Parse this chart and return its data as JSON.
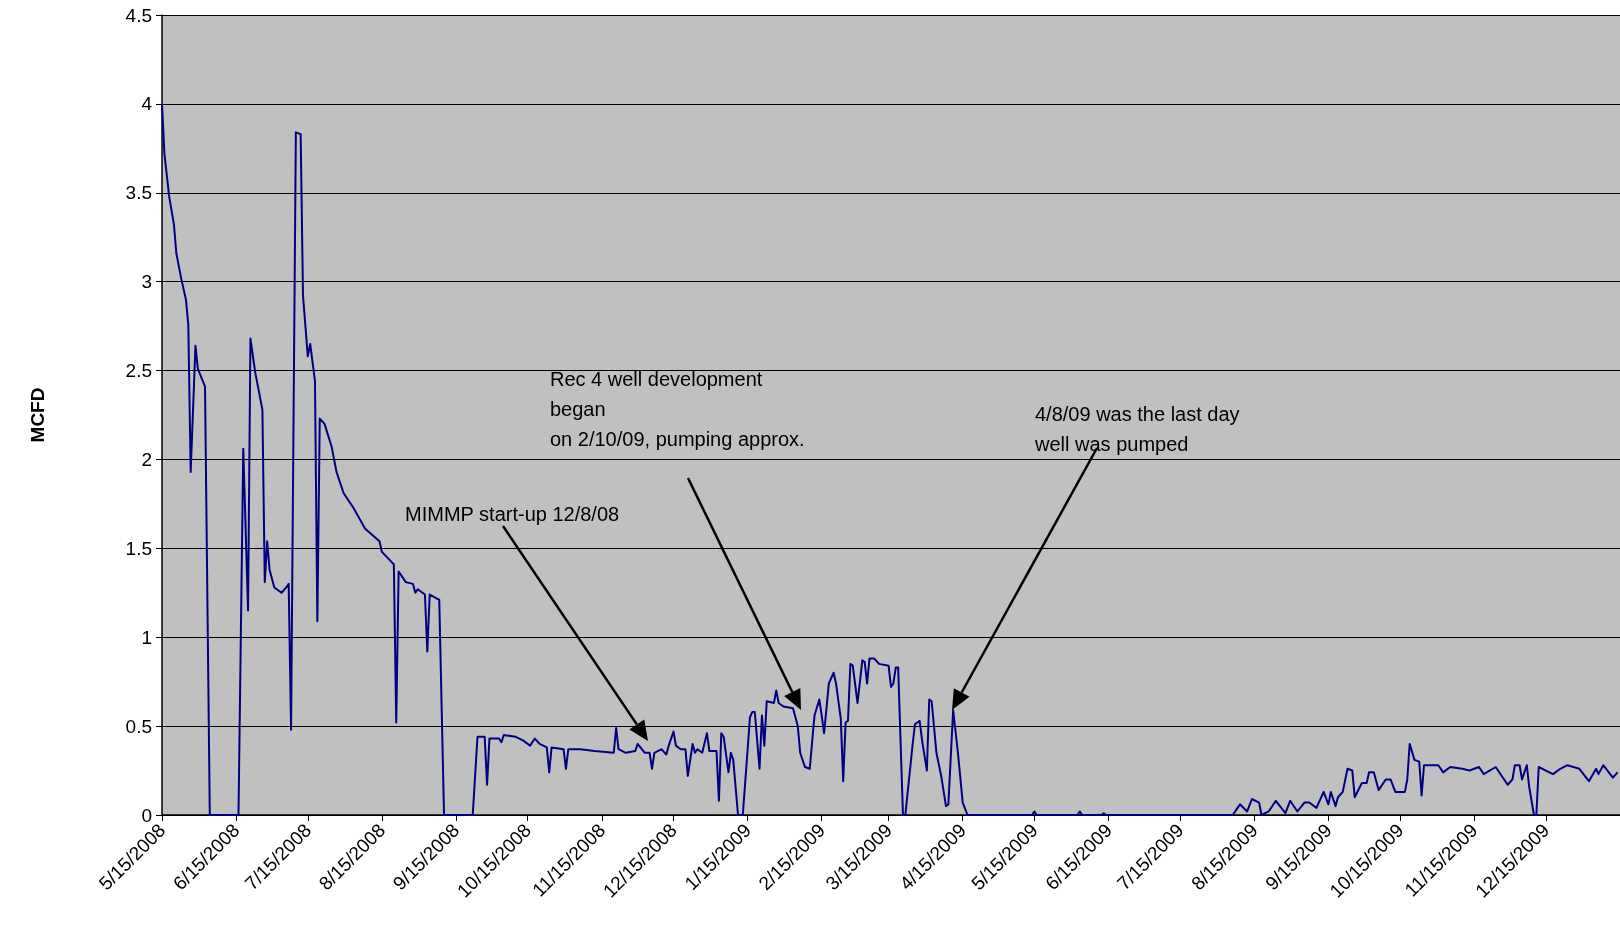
{
  "chart_data": {
    "type": "line",
    "ylabel": "MCFD",
    "color": "#000080",
    "grid": "y",
    "xlim": [
      "2008-05-15",
      "2010-01-15"
    ],
    "xticks": [
      {
        "value": "2008-05-15",
        "label": "5/15/2008"
      },
      {
        "value": "2008-06-15",
        "label": "6/15/2008"
      },
      {
        "value": "2008-07-15",
        "label": "7/15/2008"
      },
      {
        "value": "2008-08-15",
        "label": "8/15/2008"
      },
      {
        "value": "2008-09-15",
        "label": "9/15/2008"
      },
      {
        "value": "2008-10-15",
        "label": "10/15/2008"
      },
      {
        "value": "2008-11-15",
        "label": "11/15/2008"
      },
      {
        "value": "2008-12-15",
        "label": "12/15/2008"
      },
      {
        "value": "2009-01-15",
        "label": "1/15/2009"
      },
      {
        "value": "2009-02-15",
        "label": "2/15/2009"
      },
      {
        "value": "2009-03-15",
        "label": "3/15/2009"
      },
      {
        "value": "2009-04-15",
        "label": "4/15/2009"
      },
      {
        "value": "2009-05-15",
        "label": "5/15/2009"
      },
      {
        "value": "2009-06-15",
        "label": "6/15/2009"
      },
      {
        "value": "2009-07-15",
        "label": "7/15/2009"
      },
      {
        "value": "2009-08-15",
        "label": "8/15/2009"
      },
      {
        "value": "2009-09-15",
        "label": "9/15/2009"
      },
      {
        "value": "2009-10-15",
        "label": "10/15/2009"
      },
      {
        "value": "2009-11-15",
        "label": "11/15/2009"
      },
      {
        "value": "2009-12-15",
        "label": "12/15/2009"
      },
      {
        "value": "2010-01-15",
        "label": null
      }
    ],
    "ylim": [
      0,
      4.5
    ],
    "yticks": [
      0,
      0.5,
      1,
      1.5,
      2,
      2.5,
      3,
      3.5,
      4,
      4.5
    ],
    "x": [
      "2008-05-15",
      "2008-05-16",
      "2008-05-18",
      "2008-05-20",
      "2008-05-21",
      "2008-05-23",
      "2008-05-25",
      "2008-05-26",
      "2008-05-27",
      "2008-05-29",
      "2008-05-30",
      "2008-06-02",
      "2008-06-04",
      "2008-06-16",
      "2008-06-18",
      "2008-06-20",
      "2008-06-21",
      "2008-06-23",
      "2008-06-26",
      "2008-06-27",
      "2008-06-28",
      "2008-06-29",
      "2008-07-01",
      "2008-07-04",
      "2008-07-06",
      "2008-07-07",
      "2008-07-08",
      "2008-07-10",
      "2008-07-12",
      "2008-07-13",
      "2008-07-15",
      "2008-07-16",
      "2008-07-18",
      "2008-07-19",
      "2008-07-20",
      "2008-07-22",
      "2008-07-25",
      "2008-07-27",
      "2008-07-30",
      "2008-08-03",
      "2008-08-08",
      "2008-08-14",
      "2008-08-15",
      "2008-08-20",
      "2008-08-21",
      "2008-08-22",
      "2008-08-25",
      "2008-08-28",
      "2008-08-29",
      "2008-08-30",
      "2008-09-02",
      "2008-09-03",
      "2008-09-04",
      "2008-09-08",
      "2008-09-10",
      "2008-09-22",
      "2008-09-24",
      "2008-09-27",
      "2008-09-28",
      "2008-09-29",
      "2008-10-03",
      "2008-10-04",
      "2008-10-05",
      "2008-10-10",
      "2008-10-13",
      "2008-10-16",
      "2008-10-18",
      "2008-10-20",
      "2008-10-23",
      "2008-10-24",
      "2008-10-25",
      "2008-10-30",
      "2008-10-31",
      "2008-11-01",
      "2008-11-06",
      "2008-11-12",
      "2008-11-20",
      "2008-11-21",
      "2008-11-22",
      "2008-11-25",
      "2008-11-29",
      "2008-11-30",
      "2008-12-03",
      "2008-12-05",
      "2008-12-06",
      "2008-12-07",
      "2008-12-10",
      "2008-12-12",
      "2008-12-13",
      "2008-12-15",
      "2008-12-16",
      "2008-12-18",
      "2008-12-20",
      "2008-12-21",
      "2008-12-23",
      "2008-12-24",
      "2008-12-25",
      "2008-12-27",
      "2008-12-29",
      "2008-12-30",
      "2009-01-02",
      "2009-01-03",
      "2009-01-04",
      "2009-01-05",
      "2009-01-07",
      "2009-01-08",
      "2009-01-09",
      "2009-01-11",
      "2009-01-13",
      "2009-01-16",
      "2009-01-17",
      "2009-01-18",
      "2009-01-20",
      "2009-01-21",
      "2009-01-22",
      "2009-01-23",
      "2009-01-26",
      "2009-01-27",
      "2009-01-28",
      "2009-01-30",
      "2009-02-03",
      "2009-02-05",
      "2009-02-06",
      "2009-02-08",
      "2009-02-10",
      "2009-02-12",
      "2009-02-14",
      "2009-02-15",
      "2009-02-16",
      "2009-02-18",
      "2009-02-20",
      "2009-02-21",
      "2009-02-23",
      "2009-02-24",
      "2009-02-25",
      "2009-02-26",
      "2009-02-27",
      "2009-02-28",
      "2009-03-02",
      "2009-03-04",
      "2009-03-05",
      "2009-03-06",
      "2009-03-07",
      "2009-03-09",
      "2009-03-11",
      "2009-03-15",
      "2009-03-16",
      "2009-03-17",
      "2009-03-18",
      "2009-03-19",
      "2009-03-21",
      "2009-03-22",
      "2009-03-25",
      "2009-03-26",
      "2009-03-28",
      "2009-03-29",
      "2009-03-31",
      "2009-04-01",
      "2009-04-02",
      "2009-04-04",
      "2009-04-06",
      "2009-04-08",
      "2009-04-09",
      "2009-04-11",
      "2009-04-13",
      "2009-04-15",
      "2009-04-17",
      "2009-05-14",
      "2009-05-15",
      "2009-05-16",
      "2009-06-02",
      "2009-06-03",
      "2009-06-04",
      "2009-06-12",
      "2009-06-13",
      "2009-06-14",
      "2009-08-06",
      "2009-08-09",
      "2009-08-12",
      "2009-08-14",
      "2009-08-17",
      "2009-08-18",
      "2009-08-21",
      "2009-08-24",
      "2009-08-28",
      "2009-08-30",
      "2009-09-02",
      "2009-09-05",
      "2009-09-07",
      "2009-09-10",
      "2009-09-13",
      "2009-09-15",
      "2009-09-16",
      "2009-09-18",
      "2009-09-19",
      "2009-09-21",
      "2009-09-23",
      "2009-09-25",
      "2009-09-26",
      "2009-09-29",
      "2009-10-01",
      "2009-10-02",
      "2009-10-04",
      "2009-10-06",
      "2009-10-09",
      "2009-10-11",
      "2009-10-13",
      "2009-10-17",
      "2009-10-18",
      "2009-10-19",
      "2009-10-21",
      "2009-10-23",
      "2009-10-24",
      "2009-10-25",
      "2009-10-31",
      "2009-11-02",
      "2009-11-05",
      "2009-11-10",
      "2009-11-13",
      "2009-11-17",
      "2009-11-19",
      "2009-11-24",
      "2009-11-29",
      "2009-12-01",
      "2009-12-02",
      "2009-12-04",
      "2009-12-05",
      "2009-12-07",
      "2009-12-08",
      "2009-12-10",
      "2009-12-11",
      "2009-12-12",
      "2009-12-15",
      "2009-12-18",
      "2009-12-21",
      "2009-12-24",
      "2009-12-29",
      "2010-01-02",
      "2010-01-05",
      "2010-01-06",
      "2010-01-08",
      "2010-01-12",
      "2010-01-14"
    ],
    "values": [
      4.0,
      3.72,
      3.48,
      3.32,
      3.16,
      3.02,
      2.9,
      2.76,
      1.93,
      2.64,
      2.51,
      2.41,
      0,
      0,
      2.06,
      1.15,
      2.68,
      2.49,
      2.28,
      1.31,
      1.54,
      1.38,
      1.28,
      1.25,
      1.28,
      1.3,
      0.48,
      3.84,
      3.83,
      2.92,
      2.58,
      2.65,
      2.44,
      1.09,
      2.23,
      2.2,
      2.07,
      1.93,
      1.81,
      1.73,
      1.61,
      1.54,
      1.48,
      1.41,
      0.52,
      1.37,
      1.31,
      1.3,
      1.25,
      1.27,
      1.24,
      0.92,
      1.24,
      1.21,
      0,
      0,
      0.44,
      0.44,
      0.17,
      0.43,
      0.43,
      0.41,
      0.45,
      0.44,
      0.42,
      0.39,
      0.43,
      0.4,
      0.38,
      0.24,
      0.38,
      0.37,
      0.26,
      0.37,
      0.37,
      0.36,
      0.35,
      0.49,
      0.37,
      0.35,
      0.36,
      0.4,
      0.35,
      0.35,
      0.26,
      0.35,
      0.37,
      0.34,
      0.39,
      0.47,
      0.39,
      0.37,
      0.37,
      0.22,
      0.4,
      0.35,
      0.37,
      0.35,
      0.46,
      0.36,
      0.36,
      0.08,
      0.46,
      0.44,
      0.24,
      0.35,
      0.31,
      0,
      0,
      0.55,
      0.58,
      0.58,
      0.26,
      0.56,
      0.39,
      0.64,
      0.63,
      0.7,
      0.63,
      0.61,
      0.6,
      0.5,
      0.35,
      0.27,
      0.26,
      0.56,
      0.65,
      0.56,
      0.46,
      0.74,
      0.8,
      0.74,
      0.54,
      0.19,
      0.52,
      0.53,
      0.85,
      0.84,
      0.63,
      0.87,
      0.86,
      0.74,
      0.88,
      0.88,
      0.85,
      0.84,
      0.72,
      0.74,
      0.83,
      0.83,
      0,
      0,
      0.39,
      0.51,
      0.53,
      0.42,
      0.25,
      0.65,
      0.64,
      0.35,
      0.22,
      0.05,
      0.06,
      0.59,
      0.35,
      0.07,
      0,
      0,
      0.02,
      0,
      0,
      0.02,
      0,
      0,
      0.01,
      0,
      0,
      0.06,
      0.02,
      0.09,
      0.07,
      0,
      0.02,
      0.08,
      0.01,
      0.08,
      0.02,
      0.07,
      0.07,
      0.04,
      0.13,
      0.06,
      0.13,
      0.05,
      0.1,
      0.13,
      0.26,
      0.25,
      0.1,
      0.18,
      0.18,
      0.24,
      0.24,
      0.14,
      0.2,
      0.2,
      0.13,
      0.13,
      0.2,
      0.4,
      0.31,
      0.3,
      0.11,
      0.28,
      0.28,
      0.24,
      0.27,
      0.26,
      0.25,
      0.27,
      0.23,
      0.27,
      0.17,
      0.2,
      0.28,
      0.28,
      0.2,
      0.28,
      0.16,
      0,
      0,
      0.27,
      0.25,
      0.23,
      0.26,
      0.28,
      0.26,
      0.19,
      0.26,
      0.23,
      0.28,
      0.21,
      0.24
    ],
    "annotations": [
      "MIMMP start-up 12/8/08",
      "Rec 4 well development\nbegan\non 2/10/09, pumping approx.",
      "4/8/09 was the last day\nwell was pumped"
    ]
  }
}
